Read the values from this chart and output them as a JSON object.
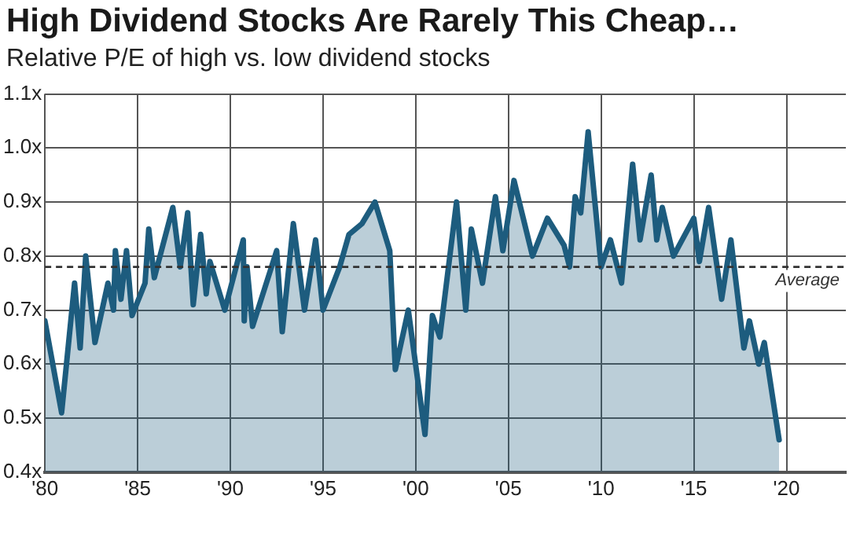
{
  "chart_data": {
    "type": "area",
    "title": "High Dividend Stocks Are Rarely This Cheap…",
    "subtitle": "Relative P/E of high vs. low dividend stocks",
    "series": [
      {
        "color": "#1d5c7e",
        "x": [
          1980.0,
          1980.9,
          1981.6,
          1981.9,
          1982.2,
          1982.7,
          1983.4,
          1983.7,
          1983.8,
          1984.1,
          1984.4,
          1984.7,
          1985.4,
          1985.6,
          1985.9,
          1986.9,
          1987.3,
          1987.7,
          1988.0,
          1988.4,
          1988.7,
          1988.9,
          1989.7,
          1990.7,
          1990.75,
          1990.9,
          1991.2,
          1992.5,
          1992.8,
          1993.4,
          1994.0,
          1994.6,
          1995.0,
          1995.9,
          1996.4,
          1997.1,
          1997.8,
          1998.6,
          1998.9,
          1999.6,
          2000.5,
          2000.9,
          2001.3,
          2002.2,
          2002.7,
          2003.0,
          2003.6,
          2004.3,
          2004.7,
          2005.3,
          2006.3,
          2007.1,
          2008.0,
          2008.3,
          2008.6,
          2008.9,
          2009.3,
          2010.0,
          2010.5,
          2011.1,
          2011.7,
          2012.1,
          2012.7,
          2013.0,
          2013.3,
          2013.9,
          2015.0,
          2015.3,
          2015.8,
          2016.5,
          2017.0,
          2017.7,
          2018.0,
          2018.5,
          2018.8,
          2019.6
        ],
        "values": [
          0.68,
          0.51,
          0.75,
          0.63,
          0.8,
          0.64,
          0.75,
          0.7,
          0.81,
          0.72,
          0.81,
          0.69,
          0.75,
          0.85,
          0.76,
          0.89,
          0.78,
          0.88,
          0.71,
          0.84,
          0.73,
          0.79,
          0.7,
          0.83,
          0.68,
          0.78,
          0.67,
          0.81,
          0.66,
          0.86,
          0.7,
          0.83,
          0.7,
          0.78,
          0.84,
          0.86,
          0.9,
          0.81,
          0.59,
          0.7,
          0.47,
          0.69,
          0.65,
          0.9,
          0.7,
          0.85,
          0.75,
          0.91,
          0.81,
          0.94,
          0.8,
          0.87,
          0.82,
          0.78,
          0.91,
          0.88,
          1.03,
          0.78,
          0.83,
          0.75,
          0.97,
          0.83,
          0.95,
          0.83,
          0.89,
          0.8,
          0.87,
          0.79,
          0.89,
          0.72,
          0.83,
          0.63,
          0.68,
          0.6,
          0.64,
          0.46
        ]
      }
    ],
    "xlim": [
      1980,
      2023.2
    ],
    "xticks": [
      {
        "value": 1980,
        "label": "'80"
      },
      {
        "value": 1985,
        "label": "'85"
      },
      {
        "value": 1990,
        "label": "'90"
      },
      {
        "value": 1995,
        "label": "'95"
      },
      {
        "value": 2000,
        "label": "'00"
      },
      {
        "value": 2005,
        "label": "'05"
      },
      {
        "value": 2010,
        "label": "'10"
      },
      {
        "value": 2015,
        "label": "'15"
      },
      {
        "value": 2020,
        "label": "'20"
      }
    ],
    "ylim": [
      0.4,
      1.1
    ],
    "yticks": [
      {
        "value": 0.4,
        "label": "0.4x"
      },
      {
        "value": 0.5,
        "label": "0.5x"
      },
      {
        "value": 0.6,
        "label": "0.6x"
      },
      {
        "value": 0.7,
        "label": "0.7x"
      },
      {
        "value": 0.8,
        "label": "0.8x"
      },
      {
        "value": 0.9,
        "label": "0.9x"
      },
      {
        "value": 1.0,
        "label": "1.0x"
      },
      {
        "value": 1.1,
        "label": "1.1x"
      }
    ],
    "ref_lines": [
      {
        "axis": "y",
        "value": 0.78,
        "label": "Average",
        "color": "#333333",
        "line_style": "dashed"
      }
    ],
    "grid": true,
    "legend": false
  }
}
